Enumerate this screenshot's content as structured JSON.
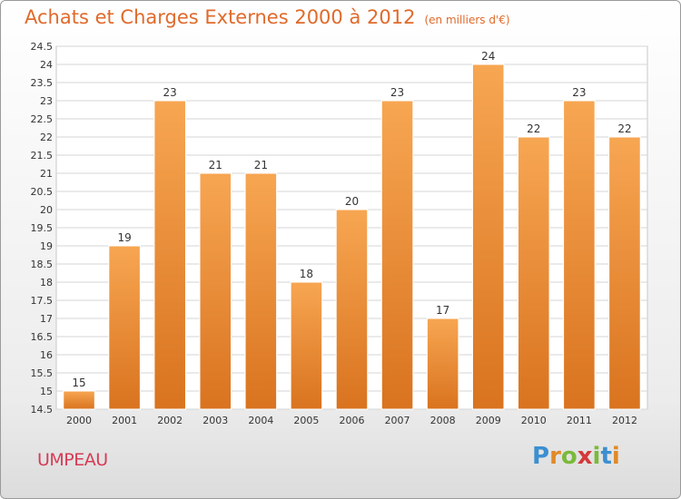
{
  "title": "Achats et Charges Externes 2000 à 2012",
  "subtitle": "(en milliers d'€)",
  "commune": "UMPEAU",
  "logo": {
    "letters": [
      "P",
      "r",
      "o",
      "x",
      "i",
      "t",
      "i"
    ],
    "colors": [
      "#3b8fd1",
      "#e08a28",
      "#7aba3a",
      "#d33a3a",
      "#7aba3a",
      "#3b8fd1",
      "#e08a28"
    ]
  },
  "colors": {
    "bar_top": "#f7a652",
    "bar_bottom": "#d9731f",
    "title": "#e06a2b",
    "commune": "#d63b55"
  },
  "chart_data": {
    "type": "bar",
    "title": "Achats et Charges Externes 2000 à 2012",
    "subtitle": "(en milliers d'€)",
    "categories": [
      "2000",
      "2001",
      "2002",
      "2003",
      "2004",
      "2005",
      "2006",
      "2007",
      "2008",
      "2009",
      "2010",
      "2011",
      "2012"
    ],
    "values": [
      15,
      19,
      23,
      21,
      21,
      18,
      20,
      23,
      17,
      24,
      22,
      23,
      22
    ],
    "data_labels": [
      "15",
      "19",
      "23",
      "21",
      "21",
      "18",
      "20",
      "23",
      "17",
      "24",
      "22",
      "23",
      "22"
    ],
    "yticks": [
      "14.5",
      "15",
      "15.5",
      "16",
      "16.5",
      "17",
      "17.5",
      "18",
      "18.5",
      "19",
      "19.5",
      "20",
      "20.5",
      "21",
      "21.5",
      "22",
      "22.5",
      "23",
      "23.5",
      "24",
      "24.5"
    ],
    "ylim": [
      14.5,
      24.5
    ],
    "ystep": 0.5,
    "grid": true,
    "legend": "none"
  }
}
